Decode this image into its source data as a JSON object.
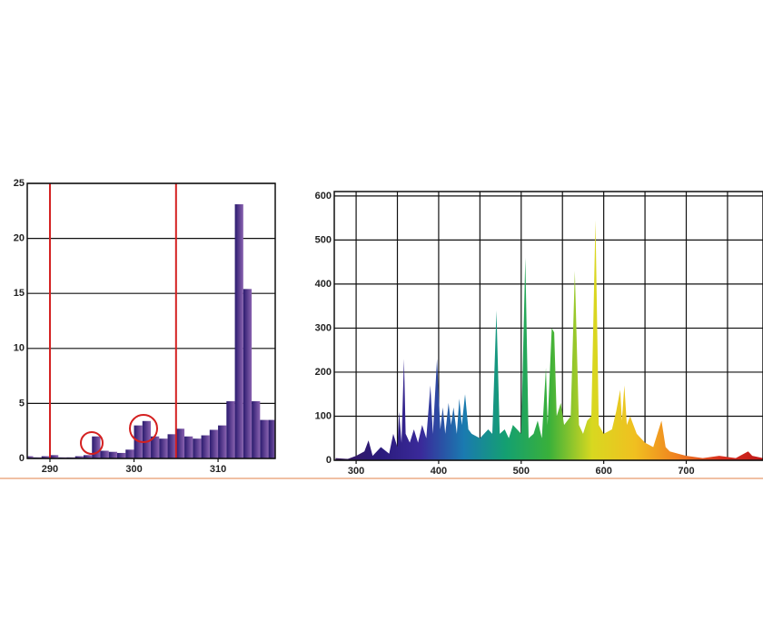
{
  "chart_data": [
    {
      "type": "histogram",
      "bins": [
        287,
        288,
        289,
        290,
        291,
        292,
        293,
        294,
        295,
        296,
        297,
        298,
        299,
        300,
        301,
        302,
        303,
        304,
        305,
        306,
        307,
        308,
        309,
        310,
        311,
        312,
        313,
        314,
        315,
        316,
        317
      ],
      "values": [
        0.2,
        0.1,
        0.2,
        0.3,
        0.1,
        0.1,
        0.2,
        0.3,
        2.0,
        0.7,
        0.6,
        0.5,
        0.8,
        3.0,
        3.4,
        2.0,
        1.8,
        2.2,
        2.7,
        2.0,
        1.8,
        2.1,
        2.6,
        3.0,
        5.2,
        23.1,
        15.4,
        5.2,
        3.5,
        3.5
      ],
      "gradient": [
        "#2a1a6e",
        "#8a62b0"
      ],
      "xlim": [
        287.3,
        316.8
      ],
      "xticks": [
        290,
        300,
        310
      ],
      "ylim": [
        0,
        25
      ],
      "yticks": [
        0,
        5,
        10,
        15,
        20,
        25
      ],
      "grid": true,
      "vlines": [
        290,
        305
      ],
      "vline_color": "#d42020"
    },
    {
      "type": "area",
      "x": [
        275,
        290,
        300,
        310,
        315,
        320,
        330,
        340,
        345,
        350,
        352,
        355,
        358,
        360,
        365,
        370,
        375,
        380,
        385,
        390,
        393,
        398,
        402,
        405,
        408,
        412,
        415,
        418,
        422,
        425,
        428,
        432,
        436,
        440,
        450,
        460,
        465,
        470,
        474,
        480,
        485,
        490,
        495,
        500,
        505,
        509,
        515,
        520,
        525,
        530,
        532,
        537,
        540,
        543,
        548,
        552,
        560,
        565,
        570,
        575,
        580,
        585,
        590,
        594,
        600,
        610,
        615,
        620,
        622,
        625,
        628,
        632,
        640,
        650,
        660,
        670,
        675,
        680,
        690,
        700,
        720,
        740,
        760,
        775,
        780,
        793
      ],
      "values": [
        5,
        3,
        10,
        20,
        45,
        10,
        30,
        15,
        60,
        30,
        110,
        40,
        230,
        60,
        40,
        70,
        40,
        80,
        50,
        170,
        60,
        230,
        70,
        120,
        60,
        130,
        80,
        120,
        60,
        140,
        80,
        150,
        70,
        60,
        50,
        70,
        60,
        340,
        60,
        70,
        50,
        80,
        70,
        60,
        460,
        50,
        60,
        90,
        50,
        210,
        80,
        300,
        290,
        100,
        130,
        80,
        100,
        430,
        80,
        60,
        90,
        100,
        545,
        80,
        60,
        70,
        110,
        160,
        90,
        170,
        80,
        100,
        60,
        40,
        30,
        90,
        30,
        20,
        15,
        10,
        5,
        10,
        5,
        20,
        10,
        5
      ],
      "gradient": [
        "#3a1a5e",
        "#2a1a7a",
        "#3a2a9a",
        "#1a7ab0",
        "#14a070",
        "#3ab03a",
        "#d8d820",
        "#f0c020",
        "#f08020",
        "#d83020",
        "#c01818"
      ],
      "xlim": [
        273.5,
        793
      ],
      "xticks": [
        300,
        400,
        500,
        600,
        700
      ],
      "xminor": [
        350,
        450,
        550,
        650,
        750
      ],
      "ylim": [
        0,
        610
      ],
      "yticks": [
        0,
        100,
        200,
        300,
        400,
        500,
        600
      ],
      "grid": true
    }
  ]
}
